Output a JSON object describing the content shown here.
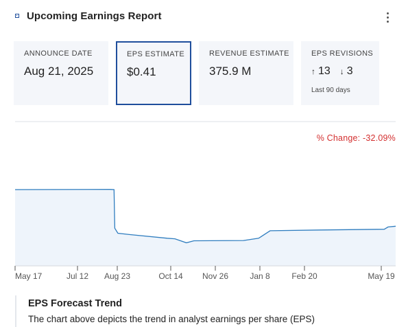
{
  "header": {
    "title": "Upcoming Earnings Report",
    "icons": {
      "logo": "square-dot-icon",
      "menu": "kebab-menu-icon"
    }
  },
  "cards": [
    {
      "label": "ANNOUNCE DATE",
      "value": "Aug 21, 2025"
    },
    {
      "label": "EPS ESTIMATE",
      "value": "$0.41"
    },
    {
      "label": "REVENUE ESTIMATE",
      "value": "375.9 M"
    }
  ],
  "revisions": {
    "label": "EPS REVISIONS",
    "up_arrow": "↑",
    "up": "13",
    "down_arrow": "↓",
    "down": "3",
    "period": "Last 90 days"
  },
  "change": {
    "label": "% Change:",
    "value": "-32.09%"
  },
  "chart_data": {
    "type": "area",
    "x_ticks": [
      "May 17",
      "Jul 12",
      "Aug 23",
      "Oct 14",
      "Nov 26",
      "Jan 8",
      "Feb 20",
      "May 19"
    ],
    "series": [
      {
        "points": [
          [
            0,
            0.604
          ],
          [
            0.25,
            0.605
          ],
          [
            0.26,
            0.604
          ],
          [
            0.262,
            0.45
          ],
          [
            0.27,
            0.43
          ],
          [
            0.3,
            0.425
          ],
          [
            0.4,
            0.41
          ],
          [
            0.42,
            0.408
          ],
          [
            0.45,
            0.392
          ],
          [
            0.47,
            0.4
          ],
          [
            0.6,
            0.401
          ],
          [
            0.64,
            0.41
          ],
          [
            0.67,
            0.44
          ],
          [
            0.8,
            0.443
          ],
          [
            0.97,
            0.446
          ],
          [
            0.98,
            0.455
          ],
          [
            1.0,
            0.458
          ]
        ]
      }
    ],
    "ylim": [
      0.3,
      0.7
    ],
    "line_color": "#2f7dbf",
    "fill_color": "#eef4fb",
    "grid": false
  },
  "description": {
    "title": "EPS Forecast Trend",
    "text": "The chart above depicts the trend in analyst earnings per share (EPS)"
  }
}
